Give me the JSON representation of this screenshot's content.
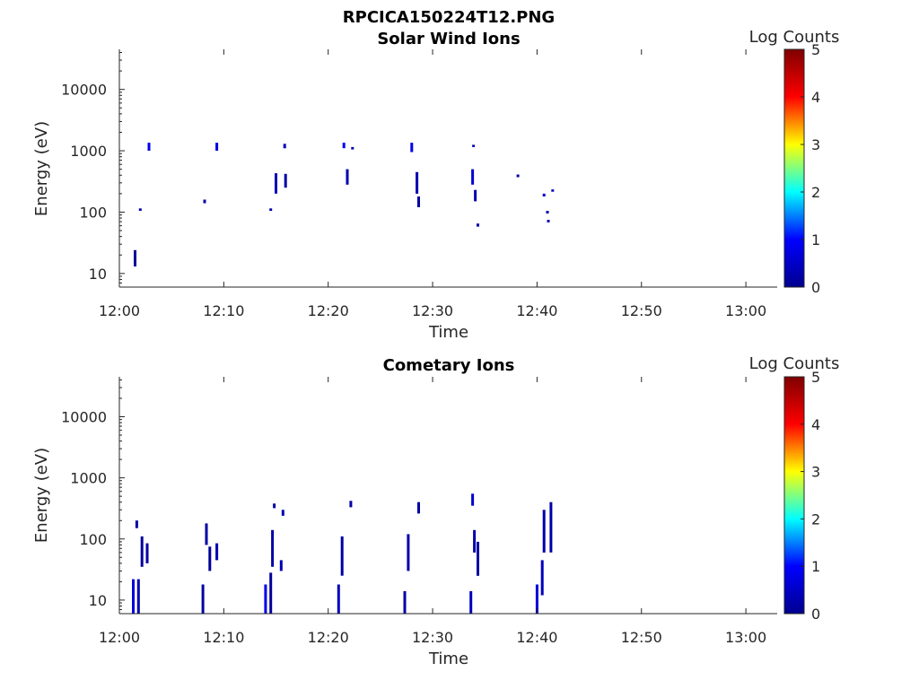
{
  "figure_title": "RPCICA150224T12.PNG",
  "colormap": [
    "#00008f",
    "#0000ff",
    "#00ffff",
    "#ffff00",
    "#ff0000",
    "#800000"
  ],
  "chart_data": [
    {
      "type": "heatmap",
      "title": "Solar Wind Ions",
      "xlabel": "Time",
      "ylabel": "Energy (eV)",
      "yscale": "log",
      "ylim": [
        6,
        45000
      ],
      "xlim": [
        "12:00",
        "13:03"
      ],
      "xticks": [
        "12:00",
        "12:10",
        "12:20",
        "12:30",
        "12:40",
        "12:50",
        "13:00"
      ],
      "yticks": [
        "10",
        "100",
        "1000",
        "10000"
      ],
      "colorbar": {
        "label": "Log Counts",
        "min": 0,
        "max": 5,
        "ticks": [
          "0",
          "1",
          "2",
          "3",
          "4",
          "5"
        ]
      },
      "points": [
        {
          "t": "12:01:30",
          "e_low": 13,
          "e_high": 24,
          "v": 0.1
        },
        {
          "t": "12:02:00",
          "e_low": 105,
          "e_high": 115,
          "v": 0.3
        },
        {
          "t": "12:02:50",
          "e_low": 1000,
          "e_high": 1350,
          "v": 0.8
        },
        {
          "t": "12:08:10",
          "e_low": 140,
          "e_high": 160,
          "v": 0.2
        },
        {
          "t": "12:09:20",
          "e_low": 1000,
          "e_high": 1350,
          "v": 0.7
        },
        {
          "t": "12:14:30",
          "e_low": 105,
          "e_high": 115,
          "v": 0.3
        },
        {
          "t": "12:15:00",
          "e_low": 200,
          "e_high": 430,
          "v": 0.3
        },
        {
          "t": "12:15:50",
          "e_low": 1100,
          "e_high": 1300,
          "v": 0.4
        },
        {
          "t": "12:15:55",
          "e_low": 250,
          "e_high": 420,
          "v": 0.2
        },
        {
          "t": "12:21:30",
          "e_low": 1100,
          "e_high": 1350,
          "v": 1.0
        },
        {
          "t": "12:21:50",
          "e_low": 280,
          "e_high": 500,
          "v": 0.3
        },
        {
          "t": "12:22:20",
          "e_low": 1050,
          "e_high": 1150,
          "v": 0.3
        },
        {
          "t": "12:28:00",
          "e_low": 950,
          "e_high": 1350,
          "v": 0.8
        },
        {
          "t": "12:28:30",
          "e_low": 200,
          "e_high": 450,
          "v": 0.3
        },
        {
          "t": "12:28:40",
          "e_low": 120,
          "e_high": 180,
          "v": 0.2
        },
        {
          "t": "12:33:50",
          "e_low": 280,
          "e_high": 500,
          "v": 0.6
        },
        {
          "t": "12:33:55",
          "e_low": 1150,
          "e_high": 1250,
          "v": 0.3
        },
        {
          "t": "12:34:05",
          "e_low": 150,
          "e_high": 230,
          "v": 0.3
        },
        {
          "t": "12:34:20",
          "e_low": 58,
          "e_high": 65,
          "v": 0.3
        },
        {
          "t": "12:38:10",
          "e_low": 370,
          "e_high": 410,
          "v": 0.3
        },
        {
          "t": "12:40:40",
          "e_low": 180,
          "e_high": 200,
          "v": 0.5
        },
        {
          "t": "12:41:00",
          "e_low": 95,
          "e_high": 105,
          "v": 0.3
        },
        {
          "t": "12:41:05",
          "e_low": 68,
          "e_high": 75,
          "v": 0.3
        },
        {
          "t": "12:41:30",
          "e_low": 215,
          "e_high": 235,
          "v": 0.4
        }
      ]
    },
    {
      "type": "heatmap",
      "title": "Cometary Ions",
      "xlabel": "Time",
      "ylabel": "Energy (eV)",
      "yscale": "log",
      "ylim": [
        6,
        45000
      ],
      "xlim": [
        "12:00",
        "13:03"
      ],
      "xticks": [
        "12:00",
        "12:10",
        "12:20",
        "12:30",
        "12:40",
        "12:50",
        "13:00"
      ],
      "yticks": [
        "10",
        "100",
        "1000",
        "10000"
      ],
      "colorbar": {
        "label": "Log Counts",
        "min": 0,
        "max": 5,
        "ticks": [
          "0",
          "1",
          "2",
          "3",
          "4",
          "5"
        ]
      },
      "points": [
        {
          "t": "12:01:20",
          "e_low": 6,
          "e_high": 22,
          "v": 0.7
        },
        {
          "t": "12:01:50",
          "e_low": 6,
          "e_high": 22,
          "v": 0.3
        },
        {
          "t": "12:01:40",
          "e_low": 150,
          "e_high": 200,
          "v": 0.2
        },
        {
          "t": "12:02:10",
          "e_low": 35,
          "e_high": 110,
          "v": 0.1
        },
        {
          "t": "12:02:40",
          "e_low": 40,
          "e_high": 85,
          "v": 0.2
        },
        {
          "t": "12:08:00",
          "e_low": 6,
          "e_high": 18,
          "v": 0.2
        },
        {
          "t": "12:08:20",
          "e_low": 80,
          "e_high": 180,
          "v": 0.2
        },
        {
          "t": "12:08:40",
          "e_low": 30,
          "e_high": 75,
          "v": 0.1
        },
        {
          "t": "12:09:20",
          "e_low": 45,
          "e_high": 85,
          "v": 0.3
        },
        {
          "t": "12:14:00",
          "e_low": 6,
          "e_high": 18,
          "v": 0.8
        },
        {
          "t": "12:14:30",
          "e_low": 6,
          "e_high": 28,
          "v": 0.1
        },
        {
          "t": "12:14:40",
          "e_low": 35,
          "e_high": 140,
          "v": 0.2
        },
        {
          "t": "12:15:30",
          "e_low": 30,
          "e_high": 45,
          "v": 0.3
        },
        {
          "t": "12:14:50",
          "e_low": 320,
          "e_high": 380,
          "v": 0.2
        },
        {
          "t": "12:15:40",
          "e_low": 240,
          "e_high": 300,
          "v": 0.3
        },
        {
          "t": "12:21:00",
          "e_low": 6,
          "e_high": 18,
          "v": 0.4
        },
        {
          "t": "12:21:20",
          "e_low": 25,
          "e_high": 110,
          "v": 0.2
        },
        {
          "t": "12:22:10",
          "e_low": 330,
          "e_high": 420,
          "v": 0.2
        },
        {
          "t": "12:27:20",
          "e_low": 6,
          "e_high": 14,
          "v": 0.2
        },
        {
          "t": "12:27:40",
          "e_low": 30,
          "e_high": 120,
          "v": 0.2
        },
        {
          "t": "12:28:40",
          "e_low": 260,
          "e_high": 400,
          "v": 0.2
        },
        {
          "t": "12:33:40",
          "e_low": 6,
          "e_high": 14,
          "v": 0.4
        },
        {
          "t": "12:33:50",
          "e_low": 350,
          "e_high": 550,
          "v": 0.5
        },
        {
          "t": "12:34:00",
          "e_low": 60,
          "e_high": 140,
          "v": 0.2
        },
        {
          "t": "12:34:20",
          "e_low": 25,
          "e_high": 90,
          "v": 0.2
        },
        {
          "t": "12:40:00",
          "e_low": 6,
          "e_high": 18,
          "v": 0.7
        },
        {
          "t": "12:40:30",
          "e_low": 12,
          "e_high": 45,
          "v": 0.4
        },
        {
          "t": "12:40:40",
          "e_low": 60,
          "e_high": 300,
          "v": 0.2
        },
        {
          "t": "12:41:20",
          "e_low": 60,
          "e_high": 400,
          "v": 0.2
        }
      ]
    }
  ]
}
